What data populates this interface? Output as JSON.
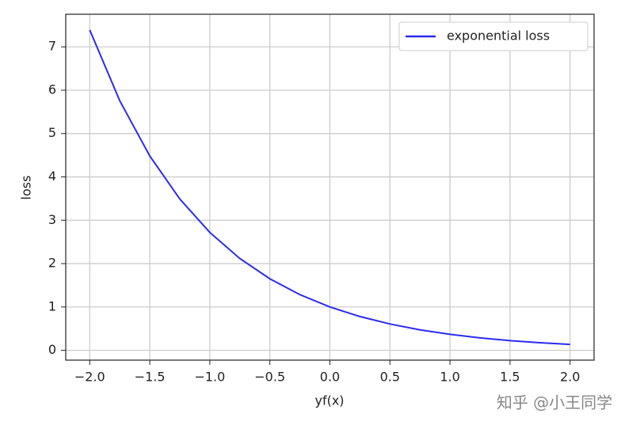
{
  "chart_data": {
    "type": "line",
    "x": [
      -2,
      -1.75,
      -1.5,
      -1.25,
      -1,
      -0.75,
      -0.5,
      -0.25,
      0,
      0.25,
      0.5,
      0.75,
      1,
      1.25,
      1.5,
      1.75,
      2
    ],
    "series": [
      {
        "name": "exponential loss",
        "color": "#2b2bf0",
        "values": [
          7.389,
          5.755,
          4.482,
          3.49,
          2.718,
          2.117,
          1.649,
          1.284,
          1,
          0.779,
          0.607,
          0.472,
          0.368,
          0.287,
          0.223,
          0.174,
          0.135
        ]
      }
    ],
    "xlabel": "yf(x)",
    "ylabel": "loss",
    "xlim": [
      -2.2,
      2.2
    ],
    "ylim": [
      -0.227,
      7.752
    ],
    "xticks": [
      {
        "value": -2,
        "label": "−2.0"
      },
      {
        "value": -1.5,
        "label": "−1.5"
      },
      {
        "value": -1,
        "label": "−1.0"
      },
      {
        "value": -0.5,
        "label": "−0.5"
      },
      {
        "value": 0,
        "label": "0.0"
      },
      {
        "value": 0.5,
        "label": "0.5"
      },
      {
        "value": 1,
        "label": "1.0"
      },
      {
        "value": 1.5,
        "label": "1.5"
      },
      {
        "value": 2,
        "label": "2.0"
      }
    ],
    "yticks": [
      0,
      1,
      2,
      3,
      4,
      5,
      6,
      7
    ],
    "grid": true,
    "legend": "upper-right",
    "watermark": "知乎 @小王同学"
  }
}
